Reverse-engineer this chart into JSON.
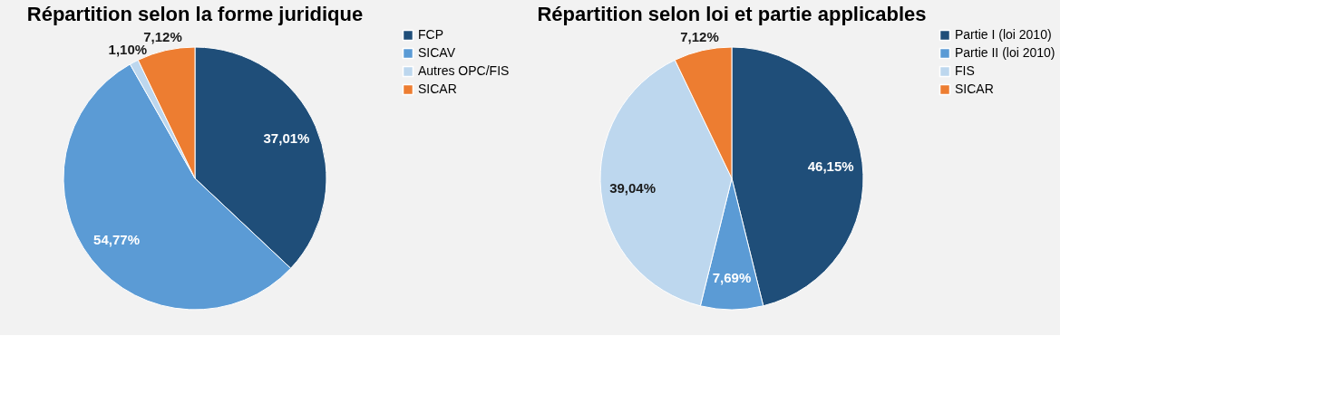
{
  "chart_data": [
    {
      "type": "pie",
      "title": "Répartition selon la forme juridique",
      "categories": [
        "FCP",
        "SICAV",
        "Autres OPC/FIS",
        "SICAR"
      ],
      "values": [
        37.01,
        54.77,
        1.1,
        7.12
      ],
      "colors": [
        "#1f4e79",
        "#5b9bd5",
        "#bdd7ee",
        "#ed7d31"
      ],
      "value_labels": [
        "37,01%",
        "54,77%",
        "1,10%",
        "7,12%"
      ],
      "legend": "right"
    },
    {
      "type": "pie",
      "title": "Répartition selon loi et partie applicables",
      "categories": [
        "Partie I (loi 2010)",
        "Partie II (loi 2010)",
        "FIS",
        "SICAR"
      ],
      "values": [
        46.15,
        7.69,
        39.04,
        7.12
      ],
      "colors": [
        "#1f4e79",
        "#5b9bd5",
        "#bdd7ee",
        "#ed7d31"
      ],
      "value_labels": [
        "46,15%",
        "7,69%",
        "39,04%",
        "7,12%"
      ],
      "legend": "right"
    }
  ]
}
